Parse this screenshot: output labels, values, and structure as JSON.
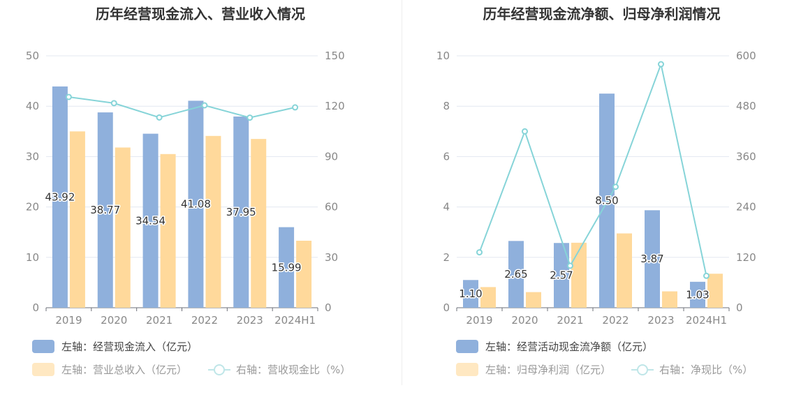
{
  "chart_data": [
    {
      "type": "bar",
      "title": "历年经营现金流入、营业收入情况",
      "categories": [
        "2019",
        "2020",
        "2021",
        "2022",
        "2023",
        "2024H1"
      ],
      "series": [
        {
          "name": "左轴：经营现金流入（亿元）",
          "axis": "left",
          "type": "bar",
          "color": "#8fb0dc",
          "values": [
            43.92,
            38.77,
            34.54,
            41.08,
            37.95,
            15.99
          ],
          "labels": [
            "43.92",
            "38.77",
            "34.54",
            "41.08",
            "37.95",
            "15.99"
          ]
        },
        {
          "name": "左轴：营业总收入（亿元）",
          "axis": "left",
          "type": "bar",
          "color": "#ffd99b",
          "values": [
            35.0,
            31.8,
            30.5,
            34.1,
            33.5,
            13.3
          ]
        },
        {
          "name": "右轴：营收现金比（%）",
          "axis": "right",
          "type": "line",
          "color": "#86d4d8",
          "values": [
            125.5,
            121.8,
            113.3,
            120.5,
            113.2,
            119.3
          ]
        }
      ],
      "left_axis": {
        "ylim": [
          0,
          50
        ],
        "ticks": [
          "0",
          "10",
          "20",
          "30",
          "40",
          "50"
        ]
      },
      "right_axis": {
        "ylim": [
          0,
          150
        ],
        "ticks": [
          "0",
          "30",
          "60",
          "90",
          "120",
          "150"
        ]
      },
      "grid": true,
      "legend_position": "bottom-left"
    },
    {
      "type": "bar",
      "title": "历年经营现金流净额、归母净利润情况",
      "categories": [
        "2019",
        "2020",
        "2021",
        "2022",
        "2023",
        "2024H1"
      ],
      "series": [
        {
          "name": "左轴：经营活动现金流净额（亿元）",
          "axis": "left",
          "type": "bar",
          "color": "#8fb0dc",
          "values": [
            1.1,
            2.65,
            2.57,
            8.5,
            3.87,
            1.03
          ],
          "labels": [
            "1.10",
            "2.65",
            "2.57",
            "8.50",
            "3.87",
            "1.03"
          ]
        },
        {
          "name": "左轴：归母净利润（亿元）",
          "axis": "left",
          "type": "bar",
          "color": "#ffd99b",
          "values": [
            0.82,
            0.62,
            2.58,
            2.95,
            0.65,
            1.35
          ]
        },
        {
          "name": "右轴：净现比（%）",
          "axis": "right",
          "type": "line",
          "color": "#86d4d8",
          "values": [
            132,
            420,
            100,
            288,
            580,
            76
          ]
        }
      ],
      "left_axis": {
        "ylim": [
          0,
          10
        ],
        "ticks": [
          "0",
          "2",
          "4",
          "6",
          "8",
          "10"
        ]
      },
      "right_axis": {
        "ylim": [
          0,
          600
        ],
        "ticks": [
          "0",
          "120",
          "240",
          "360",
          "480",
          "600"
        ]
      },
      "grid": true,
      "legend_position": "bottom-left"
    }
  ]
}
